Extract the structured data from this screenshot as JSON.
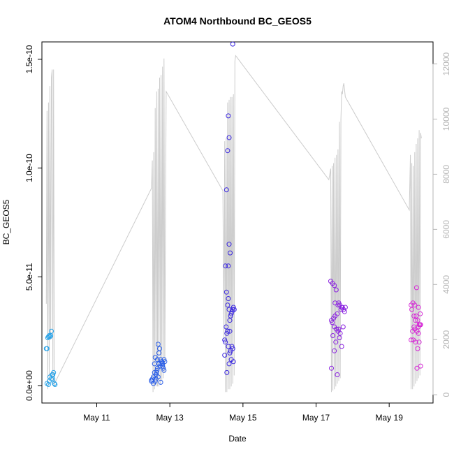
{
  "chart_data": {
    "type": "scatter",
    "title": "ATOM4 Northbound BC_GEOS5",
    "xlabel": "Date",
    "ylabel": "BC_GEOS5",
    "xlim": [
      9.5,
      20.2
    ],
    "ylim": [
      -8e-12,
      1.58e-10
    ],
    "y2lim": [
      -300,
      12800
    ],
    "x_ticks": [
      {
        "value": 11,
        "label": "May 11"
      },
      {
        "value": 13,
        "label": "May 13"
      },
      {
        "value": 15,
        "label": "May 15"
      },
      {
        "value": 17,
        "label": "May 17"
      },
      {
        "value": 19,
        "label": "May 19"
      }
    ],
    "y_ticks": [
      {
        "value": 0,
        "label": "0.0e+00"
      },
      {
        "value": 5e-11,
        "label": "5.0e-11"
      },
      {
        "value": 1e-10,
        "label": "1.0e-10"
      },
      {
        "value": 1.5e-10,
        "label": "1.5e-10"
      }
    ],
    "y2_ticks": [
      {
        "value": 0,
        "label": "0"
      },
      {
        "value": 2000,
        "label": "2000"
      },
      {
        "value": 4000,
        "label": "4000"
      },
      {
        "value": 6000,
        "label": "6000"
      },
      {
        "value": 8000,
        "label": "8000"
      },
      {
        "value": 10000,
        "label": "10000"
      },
      {
        "value": 12000,
        "label": "12000"
      }
    ],
    "grid": false,
    "altitude_line_color": "#cccccc",
    "right_axis_color": "#b5b5b5",
    "series": [
      {
        "color": "#29a3e8",
        "x": [
          9.62,
          9.64,
          9.66,
          9.68,
          9.7,
          9.72,
          9.74,
          9.76,
          9.78,
          9.8,
          9.82,
          9.84,
          9.86,
          9.68,
          9.72,
          9.76,
          9.8,
          9.64,
          9.7
        ],
        "y": [
          1.7e-11,
          1.7e-11,
          2.2e-11,
          2.25e-11,
          2.3e-11,
          2.25e-11,
          2.3e-11,
          2.5e-11,
          5e-12,
          3e-12,
          6e-12,
          1e-12,
          5e-13,
          5e-13,
          4e-12,
          3e-12,
          5e-12,
          1e-12,
          2e-12
        ]
      },
      {
        "color": "#2a5ee8",
        "x": [
          12.5,
          12.52,
          12.55,
          12.58,
          12.6,
          12.62,
          12.64,
          12.66,
          12.68,
          12.7,
          12.72,
          12.74,
          12.76,
          12.78,
          12.8,
          12.82,
          12.84,
          12.86,
          12.6,
          12.65,
          12.7,
          12.75,
          12.55,
          12.62,
          12.68,
          12.73,
          12.78,
          12.84,
          12.58,
          12.8,
          12.5,
          12.66
        ],
        "y": [
          2e-12,
          3e-12,
          4e-12,
          1e-11,
          1.3e-11,
          5e-12,
          6e-12,
          8e-12,
          1.9e-11,
          1.5e-11,
          1.7e-11,
          1.2e-11,
          1e-11,
          1.1e-11,
          9e-12,
          8e-12,
          1.2e-11,
          1.1e-11,
          2e-12,
          7e-12,
          1e-11,
          1.5e-12,
          1e-12,
          3e-12,
          4e-12,
          9e-12,
          1.1e-11,
          7e-12,
          6e-12,
          1e-11,
          2.5e-12,
          1.2e-11
        ]
      },
      {
        "color": "#3b28e0",
        "x": [
          14.72,
          14.6,
          14.62,
          14.58,
          14.55,
          14.62,
          14.6,
          14.65,
          14.52,
          14.55,
          14.58,
          14.6,
          14.62,
          14.64,
          14.66,
          14.68,
          14.7,
          14.72,
          14.74,
          14.76,
          14.5,
          14.52,
          14.54,
          14.56,
          14.58,
          14.6,
          14.62,
          14.64,
          14.66,
          14.68,
          14.7,
          14.72,
          14.74,
          14.5,
          14.56,
          14.64
        ],
        "y": [
          1.57e-10,
          1.24e-10,
          1.14e-10,
          1.08e-10,
          9e-11,
          6.5e-11,
          5.5e-11,
          6.1e-11,
          5.5e-11,
          4.3e-11,
          3.7e-11,
          4e-11,
          3.5e-11,
          3e-11,
          3.2e-11,
          3.3e-11,
          3.4e-11,
          3.5e-11,
          3.6e-11,
          3.5e-11,
          2.1e-11,
          2e-11,
          2.7e-11,
          2.4e-11,
          2.5e-11,
          1.8e-11,
          1e-11,
          1.5e-11,
          1.6e-11,
          1.2e-11,
          1.8e-11,
          1.7e-11,
          1.1e-11,
          1.4e-11,
          6e-12,
          2.5e-11
        ]
      },
      {
        "color": "#8a22e0",
        "x": [
          17.4,
          17.45,
          17.5,
          17.55,
          17.6,
          17.65,
          17.7,
          17.75,
          17.8,
          17.42,
          17.48,
          17.52,
          17.58,
          17.62,
          17.68,
          17.72,
          17.78,
          17.44,
          17.5,
          17.56,
          17.6,
          17.66,
          17.74,
          17.46,
          17.54,
          17.64,
          17.7,
          17.42,
          17.5,
          17.58,
          17.62,
          17.52
        ],
        "y": [
          4.8e-11,
          4.7e-11,
          4.6e-11,
          4.4e-11,
          3.7e-11,
          3.7e-11,
          3.6e-11,
          3.5e-11,
          3.6e-11,
          3e-11,
          3.1e-11,
          3.2e-11,
          3.3e-11,
          3.8e-11,
          3.5e-11,
          3.6e-11,
          3.4e-11,
          2.9e-11,
          2.7e-11,
          2.6e-11,
          2.5e-11,
          2.4e-11,
          2.7e-11,
          2.3e-11,
          2e-11,
          2.2e-11,
          1.8e-11,
          8e-12,
          1.6e-11,
          5e-12,
          2.6e-11,
          3.8e-11
        ]
      },
      {
        "color": "#d628d6",
        "x": [
          19.6,
          19.65,
          19.7,
          19.75,
          19.8,
          19.85,
          19.62,
          19.68,
          19.72,
          19.78,
          19.82,
          19.86,
          19.64,
          19.7,
          19.76,
          19.8,
          19.84,
          19.66,
          19.72,
          19.78,
          19.82,
          19.6,
          19.68,
          19.74,
          19.8,
          19.76,
          19.86
        ],
        "y": [
          3.7e-11,
          3.8e-11,
          3.7e-11,
          4.5e-11,
          3.6e-11,
          3.3e-11,
          3.5e-11,
          3.2e-11,
          3e-11,
          3e-11,
          2.8e-11,
          2.8e-11,
          2.5e-11,
          2.6e-11,
          2.5e-11,
          2.7e-11,
          2.8e-11,
          2.1e-11,
          2e-11,
          1.7e-11,
          2e-11,
          2.1e-11,
          2.7e-11,
          3.2e-11,
          2.4e-11,
          8e-12,
          9e-12
        ]
      }
    ],
    "altitude_line": {
      "x": [
        9.62,
        9.64,
        9.66,
        9.68,
        9.7,
        9.72,
        9.74,
        9.76,
        9.78,
        9.8,
        9.82,
        9.84,
        9.86,
        9.88,
        12.5,
        12.52,
        12.54,
        12.56,
        12.58,
        12.6,
        12.62,
        12.64,
        12.66,
        12.68,
        12.7,
        12.72,
        12.74,
        12.76,
        12.78,
        12.8,
        12.82,
        12.84,
        12.86,
        12.9,
        14.45,
        14.48,
        14.5,
        14.52,
        14.54,
        14.56,
        14.58,
        14.6,
        14.62,
        14.64,
        14.66,
        14.68,
        14.7,
        14.72,
        14.74,
        14.76,
        14.78,
        14.8,
        17.35,
        17.4,
        17.42,
        17.44,
        17.46,
        17.48,
        17.5,
        17.52,
        17.54,
        17.56,
        17.58,
        17.6,
        17.62,
        17.64,
        17.66,
        17.68,
        17.7,
        17.72,
        17.74,
        17.76,
        17.8,
        19.55,
        19.58,
        19.6,
        19.62,
        19.64,
        19.66,
        19.68,
        19.7,
        19.72,
        19.74,
        19.76,
        19.78,
        19.8,
        19.82,
        19.84,
        19.86,
        19.88
      ],
      "y": [
        3300,
        10300,
        200,
        10600,
        600,
        11200,
        2000,
        11500,
        11800,
        400,
        11800,
        300,
        500,
        500,
        7500,
        8500,
        100,
        8800,
        200,
        10400,
        300,
        11000,
        300,
        11100,
        300,
        11500,
        400,
        11600,
        500,
        11900,
        600,
        12200,
        800,
        11000,
        7400,
        2000,
        9200,
        100,
        9300,
        100,
        10600,
        200,
        10700,
        200,
        10800,
        300,
        10800,
        400,
        10900,
        700,
        12100,
        12300,
        7800,
        8200,
        100,
        8300,
        150,
        8400,
        200,
        8600,
        300,
        8700,
        400,
        8900,
        500,
        9900,
        600,
        10000,
        11000,
        10900,
        11200,
        11300,
        10800,
        6700,
        8700,
        200,
        8400,
        200,
        8300,
        300,
        8800,
        400,
        9100,
        500,
        9300,
        600,
        9600,
        700,
        9500,
        9300
      ]
    }
  }
}
